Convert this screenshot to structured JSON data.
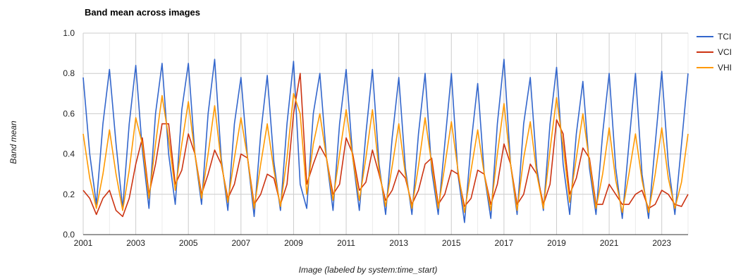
{
  "chart_data": {
    "type": "line",
    "title": "Band mean across images",
    "xlabel": "Image (labeled by system:time_start)",
    "ylabel": "Band mean",
    "xlim": [
      2001,
      2024
    ],
    "ylim": [
      0.0,
      1.0
    ],
    "x_ticks": [
      "2001",
      "2003",
      "2005",
      "2007",
      "2009",
      "2011",
      "2013",
      "2015",
      "2017",
      "2019",
      "2021",
      "2023"
    ],
    "y_ticks": [
      "0.0",
      "0.2",
      "0.4",
      "0.6",
      "0.8",
      "1.0"
    ],
    "grid": true,
    "legend_position": "right",
    "x": [
      2001.0,
      2001.25,
      2001.5,
      2001.75,
      2002.0,
      2002.25,
      2002.5,
      2002.75,
      2003.0,
      2003.25,
      2003.5,
      2003.75,
      2004.0,
      2004.25,
      2004.5,
      2004.75,
      2005.0,
      2005.25,
      2005.5,
      2005.75,
      2006.0,
      2006.25,
      2006.5,
      2006.75,
      2007.0,
      2007.25,
      2007.5,
      2007.75,
      2008.0,
      2008.25,
      2008.5,
      2008.75,
      2009.0,
      2009.25,
      2009.5,
      2009.75,
      2010.0,
      2010.25,
      2010.5,
      2010.75,
      2011.0,
      2011.25,
      2011.5,
      2011.75,
      2012.0,
      2012.25,
      2012.5,
      2012.75,
      2013.0,
      2013.25,
      2013.5,
      2013.75,
      2014.0,
      2014.25,
      2014.5,
      2014.75,
      2015.0,
      2015.25,
      2015.5,
      2015.75,
      2016.0,
      2016.25,
      2016.5,
      2016.75,
      2017.0,
      2017.25,
      2017.5,
      2017.75,
      2018.0,
      2018.25,
      2018.5,
      2018.75,
      2019.0,
      2019.25,
      2019.5,
      2019.75,
      2020.0,
      2020.25,
      2020.5,
      2020.75,
      2021.0,
      2021.25,
      2021.5,
      2021.75,
      2022.0,
      2022.25,
      2022.5,
      2022.75,
      2023.0,
      2023.25,
      2023.5,
      2023.75,
      2024.0
    ],
    "series": [
      {
        "name": "TCI",
        "color": "#3366cc",
        "values": [
          0.78,
          0.4,
          0.15,
          0.55,
          0.82,
          0.45,
          0.13,
          0.55,
          0.84,
          0.42,
          0.13,
          0.6,
          0.85,
          0.4,
          0.15,
          0.62,
          0.85,
          0.4,
          0.15,
          0.6,
          0.87,
          0.38,
          0.12,
          0.55,
          0.78,
          0.38,
          0.09,
          0.5,
          0.79,
          0.36,
          0.12,
          0.55,
          0.86,
          0.25,
          0.13,
          0.6,
          0.8,
          0.38,
          0.12,
          0.55,
          0.82,
          0.38,
          0.12,
          0.5,
          0.82,
          0.35,
          0.1,
          0.48,
          0.78,
          0.33,
          0.1,
          0.5,
          0.8,
          0.32,
          0.1,
          0.45,
          0.8,
          0.3,
          0.06,
          0.45,
          0.75,
          0.3,
          0.08,
          0.55,
          0.87,
          0.35,
          0.1,
          0.55,
          0.78,
          0.33,
          0.12,
          0.55,
          0.83,
          0.35,
          0.1,
          0.5,
          0.76,
          0.33,
          0.1,
          0.5,
          0.8,
          0.33,
          0.08,
          0.45,
          0.8,
          0.3,
          0.08,
          0.45,
          0.81,
          0.35,
          0.1,
          0.45,
          0.8
        ]
      },
      {
        "name": "VCI",
        "color": "#cc3311",
        "values": [
          0.22,
          0.18,
          0.1,
          0.18,
          0.22,
          0.12,
          0.09,
          0.18,
          0.35,
          0.48,
          0.2,
          0.35,
          0.55,
          0.55,
          0.25,
          0.32,
          0.5,
          0.4,
          0.2,
          0.3,
          0.42,
          0.35,
          0.18,
          0.25,
          0.4,
          0.38,
          0.15,
          0.2,
          0.3,
          0.28,
          0.15,
          0.25,
          0.6,
          0.8,
          0.25,
          0.35,
          0.44,
          0.38,
          0.2,
          0.25,
          0.48,
          0.4,
          0.22,
          0.26,
          0.42,
          0.3,
          0.17,
          0.22,
          0.32,
          0.28,
          0.15,
          0.22,
          0.35,
          0.38,
          0.15,
          0.2,
          0.32,
          0.3,
          0.14,
          0.18,
          0.32,
          0.3,
          0.15,
          0.25,
          0.45,
          0.35,
          0.15,
          0.2,
          0.35,
          0.3,
          0.15,
          0.25,
          0.57,
          0.5,
          0.2,
          0.28,
          0.43,
          0.38,
          0.15,
          0.15,
          0.25,
          0.2,
          0.15,
          0.15,
          0.2,
          0.22,
          0.13,
          0.15,
          0.22,
          0.2,
          0.15,
          0.14,
          0.2
        ]
      },
      {
        "name": "VHI",
        "color": "#ff9900",
        "values": [
          0.5,
          0.28,
          0.13,
          0.3,
          0.52,
          0.3,
          0.12,
          0.32,
          0.58,
          0.45,
          0.18,
          0.45,
          0.69,
          0.48,
          0.22,
          0.45,
          0.66,
          0.4,
          0.18,
          0.4,
          0.64,
          0.36,
          0.16,
          0.38,
          0.58,
          0.38,
          0.13,
          0.35,
          0.55,
          0.32,
          0.14,
          0.38,
          0.7,
          0.6,
          0.2,
          0.45,
          0.6,
          0.38,
          0.17,
          0.4,
          0.62,
          0.38,
          0.17,
          0.38,
          0.62,
          0.32,
          0.14,
          0.34,
          0.55,
          0.3,
          0.13,
          0.34,
          0.58,
          0.35,
          0.13,
          0.34,
          0.56,
          0.32,
          0.11,
          0.32,
          0.52,
          0.3,
          0.12,
          0.4,
          0.65,
          0.35,
          0.12,
          0.38,
          0.56,
          0.3,
          0.13,
          0.42,
          0.68,
          0.44,
          0.16,
          0.38,
          0.6,
          0.36,
          0.13,
          0.3,
          0.53,
          0.27,
          0.11,
          0.3,
          0.5,
          0.27,
          0.11,
          0.3,
          0.53,
          0.28,
          0.13,
          0.26,
          0.5
        ]
      }
    ]
  }
}
